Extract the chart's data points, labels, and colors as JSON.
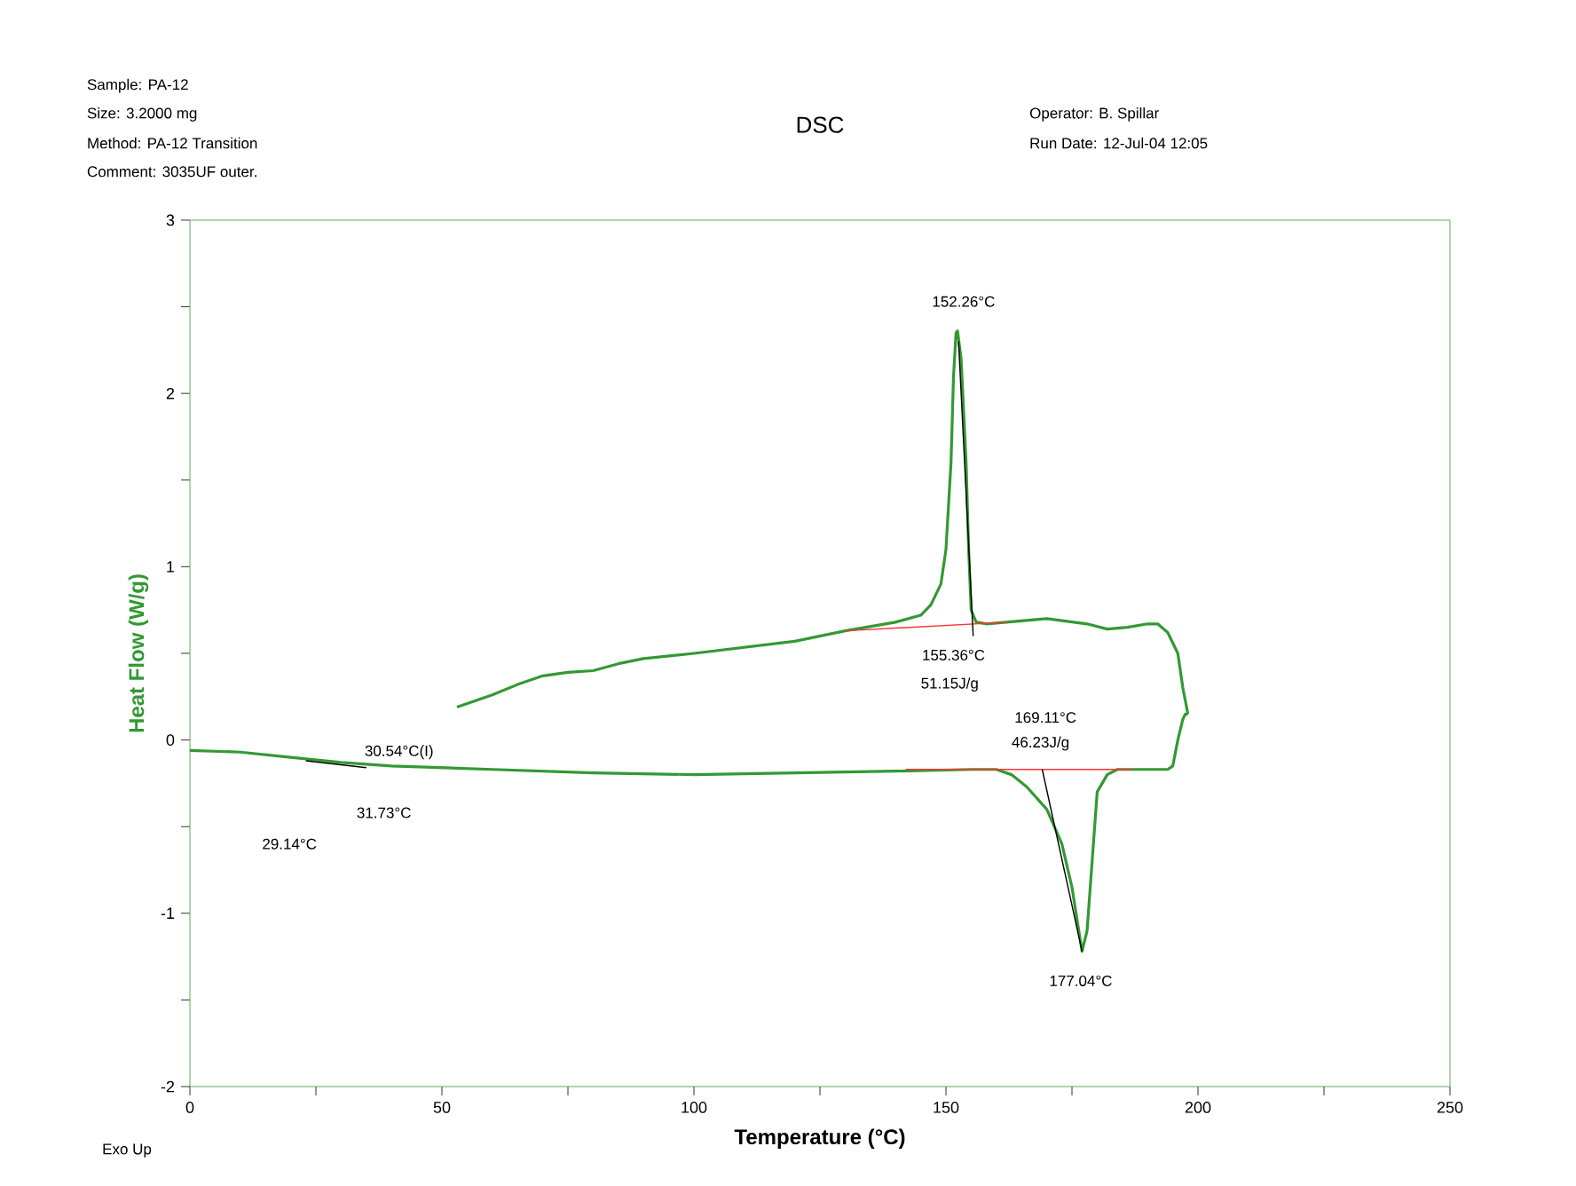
{
  "chart_data": {
    "type": "line",
    "title": "DSC",
    "xlabel": "Temperature (°C)",
    "ylabel": "Heat Flow (W/g)",
    "xlim": [
      0,
      250
    ],
    "ylim": [
      -2,
      3
    ],
    "xticks": [
      0,
      {
        "value": 25,
        "label": null
      },
      50,
      {
        "value": 75,
        "label": null
      },
      100,
      {
        "value": 125,
        "label": null
      },
      150,
      {
        "value": 175,
        "label": null
      },
      200,
      {
        "value": 225,
        "label": null
      },
      250
    ],
    "yticks": [
      -2,
      {
        "value": -1.5,
        "label": null
      },
      -1,
      {
        "value": -0.5,
        "label": null
      },
      0,
      {
        "value": 0.5,
        "label": null
      },
      1,
      {
        "value": 1.5,
        "label": null
      },
      2,
      {
        "value": 2.5,
        "label": null
      },
      3
    ],
    "grid": false,
    "marker": "none",
    "line_style": "solid",
    "series": [
      {
        "color": "#339933",
        "x": [
          0,
          10,
          20,
          30,
          40,
          60,
          80,
          100,
          120,
          140,
          155,
          160,
          163,
          166,
          170,
          173,
          175,
          177,
          178,
          179,
          180,
          182,
          184,
          190,
          194,
          195,
          196,
          197,
          197.5,
          198
        ],
        "values": [
          -0.06,
          -0.07,
          -0.1,
          -0.13,
          -0.15,
          -0.17,
          -0.19,
          -0.2,
          -0.19,
          -0.18,
          -0.17,
          -0.17,
          -0.2,
          -0.27,
          -0.4,
          -0.6,
          -0.85,
          -1.22,
          -1.1,
          -0.7,
          -0.3,
          -0.2,
          -0.17,
          -0.17,
          -0.17,
          -0.15,
          0.0,
          0.12,
          0.15,
          0.15
        ]
      },
      {
        "color": "#339933",
        "x": [
          198,
          197,
          196,
          194,
          192,
          190,
          186,
          182,
          178,
          170,
          162,
          158,
          156,
          155,
          154.5,
          154,
          153,
          152.3,
          152,
          151.5,
          151,
          150,
          149,
          147,
          145,
          140,
          130,
          120,
          100,
          90,
          85,
          80,
          75,
          70,
          65,
          60,
          53
        ],
        "values": [
          0.15,
          0.3,
          0.5,
          0.62,
          0.67,
          0.67,
          0.65,
          0.64,
          0.67,
          0.7,
          0.68,
          0.67,
          0.68,
          0.75,
          1.1,
          1.6,
          2.2,
          2.36,
          2.35,
          2.1,
          1.6,
          1.1,
          0.9,
          0.78,
          0.72,
          0.68,
          0.63,
          0.57,
          0.5,
          0.47,
          0.44,
          0.4,
          0.39,
          0.37,
          0.32,
          0.26,
          0.19
        ]
      },
      {
        "color": "#ff3333",
        "x": [
          130,
          162
        ],
        "values": [
          0.63,
          0.68
        ]
      },
      {
        "color": "#ff3333",
        "x": [
          142,
          187
        ],
        "values": [
          -0.17,
          -0.17
        ]
      },
      {
        "color": "#000000",
        "x": [
          155.4,
          152.5
        ],
        "values": [
          0.6,
          2.3
        ]
      },
      {
        "color": "#000000",
        "x": [
          169.1,
          177
        ],
        "values": [
          -0.17,
          -1.22
        ]
      },
      {
        "color": "#000000",
        "x": [
          23,
          35
        ],
        "values": [
          -0.12,
          -0.16
        ]
      }
    ],
    "annotations": [
      "152.26°C",
      "155.36°C",
      "51.15J/g",
      "169.11°C",
      "46.23J/g",
      "177.04°C",
      "30.54°C(I)",
      "31.73°C",
      "29.14°C",
      "Sample: PA-12",
      "Size:   3.2000 mg",
      "Method: PA-12 Transition",
      "Comment: 3035UF outer.",
      "Operator: B. Spillar",
      "Run Date: 12-Jul-04 12:05",
      "Exo Up"
    ]
  }
}
